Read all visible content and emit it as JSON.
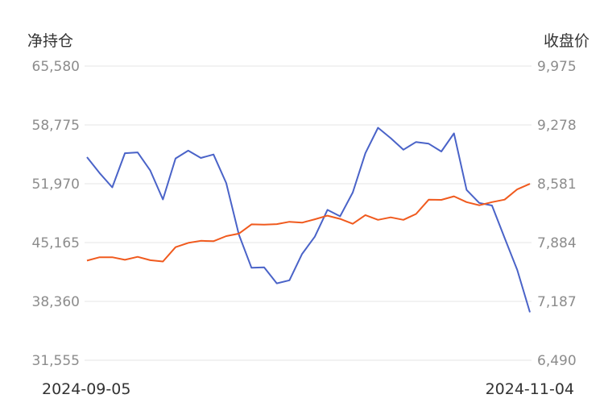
{
  "chart_data": {
    "type": "line",
    "left_axis_title": "净持仓",
    "right_axis_title": "收盘价",
    "left_ticks": [
      "65,580",
      "58,775",
      "51,970",
      "45,165",
      "38,360",
      "31,555"
    ],
    "right_ticks": [
      "9,975",
      "9,278",
      "8,581",
      "7,884",
      "7,187",
      "6,490"
    ],
    "left_range": [
      31555,
      65580
    ],
    "right_range": [
      6490,
      9975
    ],
    "x_start_label": "2024-09-05",
    "x_end_label": "2024-11-04",
    "grid": true,
    "series": [
      {
        "axis": "left",
        "color": "#4a63c8",
        "values": [
          55050,
          53200,
          51550,
          55500,
          55600,
          53500,
          50150,
          54900,
          55800,
          54950,
          55350,
          52050,
          46100,
          42250,
          42300,
          40450,
          40800,
          43850,
          45850,
          48950,
          48200,
          50950,
          55500,
          58450,
          57250,
          55900,
          56800,
          56600,
          55700,
          57800,
          51250,
          49750,
          49450,
          45700,
          42000,
          37100
        ]
      },
      {
        "axis": "right",
        "color": "#f05a1e",
        "values": [
          7670,
          7710,
          7710,
          7680,
          7715,
          7675,
          7660,
          7830,
          7880,
          7905,
          7900,
          7960,
          7990,
          8100,
          8097,
          8103,
          8130,
          8120,
          8160,
          8203,
          8165,
          8106,
          8210,
          8153,
          8183,
          8153,
          8223,
          8392,
          8390,
          8432,
          8363,
          8326,
          8363,
          8393,
          8515,
          8580
        ]
      }
    ]
  }
}
